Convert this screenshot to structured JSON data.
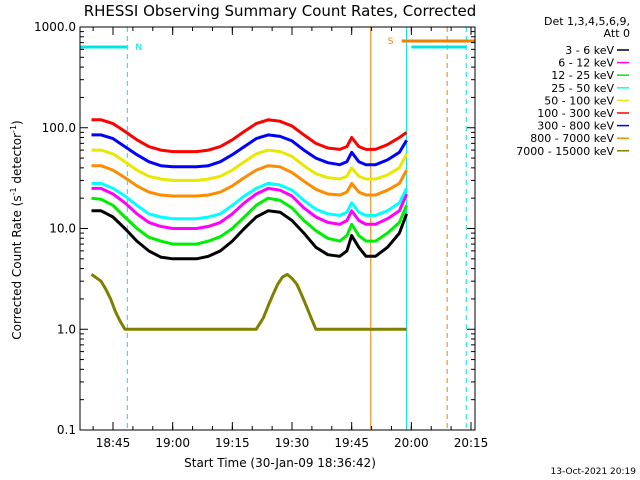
{
  "chart_data": {
    "type": "line",
    "title": "RHESSI Observing Summary Count Rates, Corrected",
    "xlabel": "Start Time (30-Jan-09 18:36:42)",
    "ylabel": "Corrected Count Rate (s",
    "ylabel_exp1": "-1",
    "ylabel_mid": " detector",
    "ylabel_exp2": "-1",
    "ylabel_end": ")",
    "yscale": "log",
    "xlim": [
      18.6117,
      20.2667
    ],
    "ylim": [
      0.1,
      1000
    ],
    "x_ticks": [
      {
        "x": 18.75,
        "label": "18:45"
      },
      {
        "x": 19.0,
        "label": "19:00"
      },
      {
        "x": 19.25,
        "label": "19:15"
      },
      {
        "x": 19.5,
        "label": "19:30"
      },
      {
        "x": 19.75,
        "label": "19:45"
      },
      {
        "x": 20.0,
        "label": "20:00"
      },
      {
        "x": 20.25,
        "label": "20:15"
      }
    ],
    "y_ticks": [
      {
        "y": 1000,
        "label": "1000.0"
      },
      {
        "y": 100,
        "label": "100.0"
      },
      {
        "y": 10,
        "label": "10.0"
      },
      {
        "y": 1,
        "label": "1.0"
      },
      {
        "y": 0.1,
        "label": "0.1"
      }
    ],
    "legend_header": [
      "Det 1,3,4,5,6,9,",
      "Att 0"
    ],
    "legend_placement": "right",
    "flags": [
      {
        "label": "N",
        "color": "#00e5e5",
        "x": [
          18.61,
          18.81
        ]
      },
      {
        "label": "S",
        "color": "#f08000",
        "x": [
          19.96,
          20.31
        ]
      },
      {
        "label": "",
        "color": "#00e5e5",
        "x": [
          20.0,
          20.23
        ]
      }
    ],
    "vlines": [
      {
        "x": 18.6117,
        "color": "#00e5e5",
        "dash": false
      },
      {
        "x": 18.81,
        "color": "#00e5e5",
        "dash": true
      },
      {
        "x": 19.83,
        "color": "#f08000",
        "dash": false
      },
      {
        "x": 19.98,
        "color": "#00e5e5",
        "dash": false
      },
      {
        "x": 20.15,
        "color": "#f08000",
        "dash": true
      },
      {
        "x": 20.23,
        "color": "#00e5e5",
        "dash": true
      }
    ],
    "series": [
      {
        "name": "3 - 6 keV",
        "color": "#000000",
        "x": [
          18.66,
          18.7,
          18.75,
          18.8,
          18.85,
          18.9,
          18.95,
          19.0,
          19.05,
          19.1,
          19.15,
          19.2,
          19.25,
          19.3,
          19.35,
          19.4,
          19.45,
          19.5,
          19.55,
          19.6,
          19.65,
          19.7,
          19.73,
          19.75,
          19.78,
          19.81,
          19.85,
          19.9,
          19.95,
          19.98
        ],
        "y": [
          15,
          15,
          13,
          10,
          7.5,
          6.0,
          5.2,
          5.0,
          5.0,
          5.0,
          5.3,
          6.0,
          7.5,
          10,
          13,
          15,
          14.5,
          12,
          9.0,
          6.5,
          5.5,
          5.3,
          6.0,
          8.5,
          6.5,
          5.3,
          5.3,
          6.5,
          9.0,
          14
        ]
      },
      {
        "name": "6 - 12 keV",
        "color": "#ff00ff",
        "x": [
          18.66,
          18.7,
          18.75,
          18.8,
          18.85,
          18.9,
          18.95,
          19.0,
          19.05,
          19.1,
          19.15,
          19.2,
          19.25,
          19.3,
          19.35,
          19.4,
          19.45,
          19.5,
          19.55,
          19.6,
          19.65,
          19.7,
          19.73,
          19.75,
          19.78,
          19.81,
          19.85,
          19.9,
          19.95,
          19.98
        ],
        "y": [
          25,
          25,
          22,
          18,
          14,
          11.5,
          10.5,
          10,
          10,
          10,
          10.5,
          11.5,
          14,
          18,
          22,
          25,
          24,
          21,
          16,
          13,
          11.5,
          11,
          12,
          15,
          12,
          11,
          11,
          12.5,
          15,
          22
        ]
      },
      {
        "name": "12 - 25 keV",
        "color": "#00ee00",
        "x": [
          18.66,
          18.7,
          18.75,
          18.8,
          18.85,
          18.9,
          18.95,
          19.0,
          19.05,
          19.1,
          19.15,
          19.2,
          19.25,
          19.3,
          19.35,
          19.4,
          19.45,
          19.5,
          19.55,
          19.6,
          19.65,
          19.7,
          19.73,
          19.75,
          19.78,
          19.81,
          19.85,
          19.9,
          19.95,
          19.98
        ],
        "y": [
          20,
          19.5,
          17,
          13,
          10,
          8.2,
          7.5,
          7.0,
          7.0,
          7.0,
          7.5,
          8.3,
          10,
          13,
          17,
          20,
          19,
          16,
          12,
          9.5,
          8.0,
          7.5,
          8.5,
          11,
          8.5,
          7.5,
          7.5,
          9.0,
          11.5,
          17
        ]
      },
      {
        "name": "25 - 50 keV",
        "color": "#00ffff",
        "x": [
          18.66,
          18.7,
          18.75,
          18.8,
          18.85,
          18.9,
          18.95,
          19.0,
          19.05,
          19.1,
          19.15,
          19.2,
          19.25,
          19.3,
          19.35,
          19.4,
          19.45,
          19.5,
          19.55,
          19.6,
          19.65,
          19.7,
          19.73,
          19.75,
          19.78,
          19.81,
          19.85,
          19.9,
          19.95,
          19.98
        ],
        "y": [
          28,
          28,
          25,
          21,
          17,
          14,
          13,
          12.5,
          12.5,
          12.5,
          13,
          14,
          17,
          21,
          25,
          28,
          27,
          24,
          19,
          15.5,
          14,
          13.5,
          14.5,
          18,
          14.5,
          13.5,
          13.5,
          15,
          18,
          25
        ]
      },
      {
        "name": "50 - 100 keV",
        "color": "#e8e800",
        "x": [
          18.66,
          18.7,
          18.75,
          18.8,
          18.85,
          18.9,
          18.95,
          19.0,
          19.05,
          19.1,
          19.15,
          19.2,
          19.25,
          19.3,
          19.35,
          19.4,
          19.45,
          19.5,
          19.55,
          19.6,
          19.65,
          19.7,
          19.73,
          19.75,
          19.78,
          19.81,
          19.85,
          19.9,
          19.95,
          19.98
        ],
        "y": [
          60,
          60,
          55,
          46,
          38,
          33,
          31,
          30,
          30,
          30,
          31,
          33,
          38,
          46,
          55,
          60,
          58,
          52,
          42,
          35,
          32,
          31,
          33,
          40,
          33,
          31,
          31,
          34,
          40,
          55
        ]
      },
      {
        "name": "100 - 300 keV",
        "color": "#ff0000",
        "x": [
          18.66,
          18.7,
          18.75,
          18.8,
          18.85,
          18.9,
          18.95,
          19.0,
          19.05,
          19.1,
          19.15,
          19.2,
          19.25,
          19.3,
          19.35,
          19.4,
          19.45,
          19.5,
          19.55,
          19.6,
          19.65,
          19.7,
          19.73,
          19.75,
          19.78,
          19.81,
          19.85,
          19.9,
          19.95,
          19.98
        ],
        "y": [
          120,
          120,
          110,
          92,
          76,
          65,
          60,
          58,
          58,
          58,
          60,
          65,
          76,
          92,
          110,
          120,
          116,
          104,
          85,
          70,
          63,
          61,
          65,
          80,
          65,
          61,
          61,
          68,
          80,
          90
        ]
      },
      {
        "name": "300 - 800 keV",
        "color": "#0000ff",
        "x": [
          18.66,
          18.7,
          18.75,
          18.8,
          18.85,
          18.9,
          18.95,
          19.0,
          19.05,
          19.1,
          19.15,
          19.2,
          19.25,
          19.3,
          19.35,
          19.4,
          19.45,
          19.5,
          19.55,
          19.6,
          19.65,
          19.7,
          19.73,
          19.75,
          19.78,
          19.81,
          19.85,
          19.9,
          19.95,
          19.98
        ],
        "y": [
          85,
          85,
          78,
          65,
          54,
          46,
          42,
          41,
          41,
          41,
          42,
          46,
          54,
          65,
          78,
          85,
          82,
          74,
          60,
          50,
          45,
          43,
          46,
          57,
          46,
          43,
          43,
          48,
          57,
          75
        ]
      },
      {
        "name": "800 - 7000 keV",
        "color": "#ff8c00",
        "x": [
          18.66,
          18.7,
          18.75,
          18.8,
          18.85,
          18.9,
          18.95,
          19.0,
          19.05,
          19.1,
          19.15,
          19.2,
          19.25,
          19.3,
          19.35,
          19.4,
          19.45,
          19.5,
          19.55,
          19.6,
          19.65,
          19.7,
          19.73,
          19.75,
          19.78,
          19.81,
          19.85,
          19.9,
          19.95,
          19.98
        ],
        "y": [
          42,
          42,
          38,
          32,
          26.5,
          23,
          21.5,
          21,
          21,
          21,
          21.5,
          23,
          26.5,
          32,
          38,
          42,
          41,
          36,
          29.5,
          24.5,
          22,
          21.5,
          23,
          28,
          23,
          21.5,
          21.5,
          24,
          28,
          38
        ]
      },
      {
        "name": "7000 - 15000 keV",
        "color": "#808000",
        "x": [
          18.66,
          18.7,
          18.72,
          18.74,
          18.76,
          18.78,
          18.8,
          18.82,
          18.85,
          18.9,
          18.95,
          19.0,
          19.05,
          19.1,
          19.15,
          19.2,
          19.25,
          19.3,
          19.35,
          19.38,
          19.4,
          19.42,
          19.44,
          19.46,
          19.48,
          19.5,
          19.52,
          19.54,
          19.56,
          19.58,
          19.6,
          19.62,
          19.65,
          19.7,
          19.75,
          19.8,
          19.85,
          19.9,
          19.95,
          19.98
        ],
        "y": [
          3.5,
          3.0,
          2.5,
          2.0,
          1.5,
          1.2,
          1.0,
          1.0,
          1.0,
          1.0,
          1.0,
          1.0,
          1.0,
          1.0,
          1.0,
          1.0,
          1.0,
          1.0,
          1.0,
          1.3,
          1.7,
          2.2,
          2.8,
          3.3,
          3.5,
          3.2,
          2.8,
          2.2,
          1.7,
          1.3,
          1.0,
          1.0,
          1.0,
          1.0,
          1.0,
          1.0,
          1.0,
          1.0,
          1.0,
          1.0
        ]
      }
    ]
  },
  "footer_stamp": "13-Oct-2021 20:19"
}
